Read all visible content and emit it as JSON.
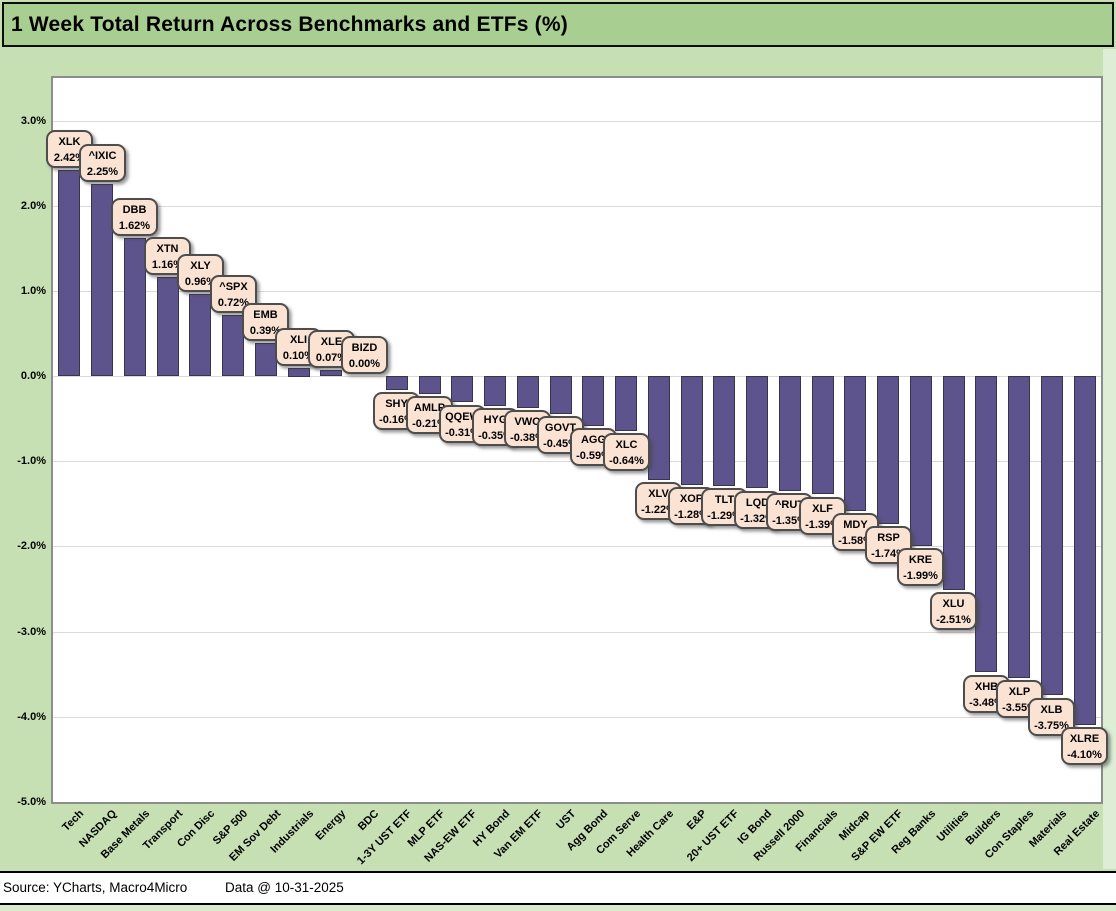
{
  "window": {
    "title": "1 Week Total Return Across Benchmarks and ETFs (%)"
  },
  "footer": {
    "source_label": "Source: YCharts, Macro4Micro",
    "data_label": "Data @ 10-31-2025"
  },
  "colors": {
    "title_bar_bg": "#A9CE91",
    "chart_bg": "#C6E0B4",
    "side_strip_bg": "#DEEDD5",
    "bottom_strip_bg": "#D9EACB",
    "plot_bg": "#FFFFFF",
    "plot_border": "#8C8C8C",
    "gridline": "#D9D9D9",
    "bar_fill": "#5D548D",
    "bar_border": "#39344E",
    "label_box_bg": "#FBE3D4",
    "label_box_border": "#4D4D4D",
    "text": "#000000"
  },
  "y_axis": {
    "ticks": [
      {
        "value": 3.0,
        "label": "3.0%"
      },
      {
        "value": 2.0,
        "label": "2.0%"
      },
      {
        "value": 1.0,
        "label": "1.0%"
      },
      {
        "value": 0.0,
        "label": "0.0%"
      },
      {
        "value": -1.0,
        "label": "-1.0%"
      },
      {
        "value": -2.0,
        "label": "-2.0%"
      },
      {
        "value": -3.0,
        "label": "-3.0%"
      },
      {
        "value": -4.0,
        "label": "-4.0%"
      },
      {
        "value": -5.0,
        "label": "-5.0%"
      }
    ]
  },
  "chart_data": {
    "type": "bar",
    "title": "1 Week Total Return Across Benchmarks and ETFs (%)",
    "xlabel": "",
    "ylabel": "",
    "ylim": [
      -5.0,
      3.5
    ],
    "grid": true,
    "legend": "none",
    "categories": [
      "Tech",
      "NASDAQ",
      "Base Metals",
      "Transport",
      "Con Disc",
      "S&P 500",
      "EM Sov Debt",
      "Industrials",
      "Energy",
      "BDC",
      "1-3Y UST ETF",
      "MLP ETF",
      "NAS-EW ETF",
      "HY Bond",
      "Van EM ETF",
      "UST",
      "Agg Bond",
      "Com Serve",
      "Health Care",
      "E&P",
      "20+ UST ETF",
      "IG Bond",
      "Russell 2000",
      "Financials",
      "Midcap",
      "S&P EW ETF",
      "Reg Banks",
      "Utilities",
      "Builders",
      "Con Staples",
      "Materials",
      "Real Estate"
    ],
    "tickers": [
      "XLK",
      "^IXIC",
      "DBB",
      "XTN",
      "XLY",
      "^SPX",
      "EMB",
      "XLI",
      "XLE",
      "BIZD",
      "SHY",
      "AMLP",
      "QQEW",
      "HYG",
      "VWO",
      "GOVT",
      "AGG",
      "XLC",
      "XLV",
      "XOP",
      "TLT",
      "LQD",
      "^RUT",
      "XLF",
      "MDY",
      "RSP",
      "KRE",
      "XLU",
      "XHB",
      "XLP",
      "XLB",
      "XLRE"
    ],
    "values": [
      2.42,
      2.25,
      1.62,
      1.16,
      0.96,
      0.72,
      0.39,
      0.1,
      0.07,
      0.0,
      -0.16,
      -0.21,
      -0.31,
      -0.35,
      -0.38,
      -0.45,
      -0.59,
      -0.64,
      -1.22,
      -1.28,
      -1.29,
      -1.32,
      -1.35,
      -1.39,
      -1.58,
      -1.74,
      -1.99,
      -2.51,
      -3.48,
      -3.55,
      -3.75,
      -4.1
    ],
    "value_labels": [
      "2.42%",
      "2.25%",
      "1.62%",
      "1.16%",
      "0.96%",
      "0.72%",
      "0.39%",
      "0.10%",
      "0.07%",
      "0.00%",
      "-0.16%",
      "-0.21%",
      "-0.31%",
      "-0.35%",
      "-0.38%",
      "-0.45%",
      "-0.59%",
      "-0.64%",
      "-1.22%",
      "-1.28%",
      "-1.29%",
      "-1.32%",
      "-1.35%",
      "-1.39%",
      "-1.58%",
      "-1.74%",
      "-1.99%",
      "-2.51%",
      "-3.48%",
      "-3.55%",
      "-3.75%",
      "-4.10%"
    ]
  }
}
